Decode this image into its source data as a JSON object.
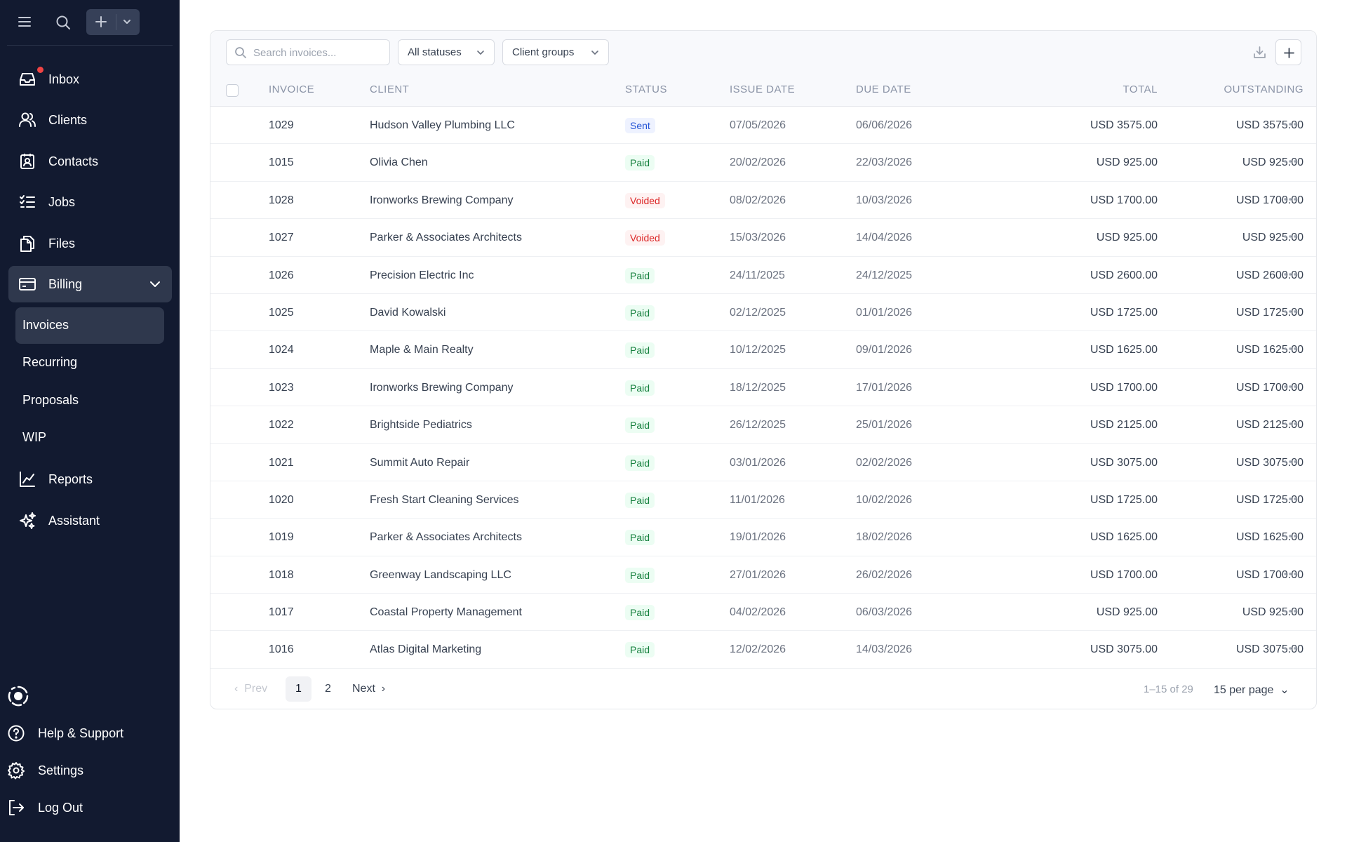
{
  "sidebar": {
    "nav": [
      {
        "label": "Inbox",
        "icon": "inbox-icon"
      },
      {
        "label": "Clients",
        "icon": "clients-icon"
      },
      {
        "label": "Contacts",
        "icon": "contacts-icon"
      },
      {
        "label": "Jobs",
        "icon": "jobs-icon"
      },
      {
        "label": "Files",
        "icon": "files-icon"
      },
      {
        "label": "Billing",
        "icon": "billing-icon"
      }
    ],
    "billing_sub": [
      "Invoices",
      "Recurring",
      "Proposals",
      "WIP"
    ],
    "nav2": [
      {
        "label": "Reports",
        "icon": "reports-icon"
      },
      {
        "label": "Assistant",
        "icon": "assistant-icon"
      }
    ],
    "bottom": [
      {
        "label": "Help & Support",
        "icon": "help-icon"
      },
      {
        "label": "Settings",
        "icon": "settings-icon"
      },
      {
        "label": "Log Out",
        "icon": "logout-icon"
      }
    ]
  },
  "toolbar": {
    "search_placeholder": "Search invoices...",
    "status_filter": "All statuses",
    "group_filter": "Client groups"
  },
  "table": {
    "headers": {
      "invoice": "INVOICE",
      "client": "CLIENT",
      "status": "STATUS",
      "issue": "ISSUE DATE",
      "due": "DUE DATE",
      "total": "TOTAL",
      "outstanding": "OUTSTANDING"
    },
    "rows": [
      {
        "invoice": "1029",
        "client": "Hudson Valley Plumbing LLC",
        "status": "Sent",
        "issue": "07/05/2026",
        "due": "06/06/2026",
        "total": "USD 3575.00",
        "outstanding": "USD 3575.00"
      },
      {
        "invoice": "1015",
        "client": "Olivia Chen",
        "status": "Paid",
        "issue": "20/02/2026",
        "due": "22/03/2026",
        "total": "USD 925.00",
        "outstanding": "USD 925.00"
      },
      {
        "invoice": "1028",
        "client": "Ironworks Brewing Company",
        "status": "Voided",
        "issue": "08/02/2026",
        "due": "10/03/2026",
        "total": "USD 1700.00",
        "outstanding": "USD 1700.00"
      },
      {
        "invoice": "1027",
        "client": "Parker & Associates Architects",
        "status": "Voided",
        "issue": "15/03/2026",
        "due": "14/04/2026",
        "total": "USD 925.00",
        "outstanding": "USD 925.00"
      },
      {
        "invoice": "1026",
        "client": "Precision Electric Inc",
        "status": "Paid",
        "issue": "24/11/2025",
        "due": "24/12/2025",
        "total": "USD 2600.00",
        "outstanding": "USD 2600.00"
      },
      {
        "invoice": "1025",
        "client": "David Kowalski",
        "status": "Paid",
        "issue": "02/12/2025",
        "due": "01/01/2026",
        "total": "USD 1725.00",
        "outstanding": "USD 1725.00"
      },
      {
        "invoice": "1024",
        "client": "Maple & Main Realty",
        "status": "Paid",
        "issue": "10/12/2025",
        "due": "09/01/2026",
        "total": "USD 1625.00",
        "outstanding": "USD 1625.00"
      },
      {
        "invoice": "1023",
        "client": "Ironworks Brewing Company",
        "status": "Paid",
        "issue": "18/12/2025",
        "due": "17/01/2026",
        "total": "USD 1700.00",
        "outstanding": "USD 1700.00"
      },
      {
        "invoice": "1022",
        "client": "Brightside Pediatrics",
        "status": "Paid",
        "issue": "26/12/2025",
        "due": "25/01/2026",
        "total": "USD 2125.00",
        "outstanding": "USD 2125.00"
      },
      {
        "invoice": "1021",
        "client": "Summit Auto Repair",
        "status": "Paid",
        "issue": "03/01/2026",
        "due": "02/02/2026",
        "total": "USD 3075.00",
        "outstanding": "USD 3075.00"
      },
      {
        "invoice": "1020",
        "client": "Fresh Start Cleaning Services",
        "status": "Paid",
        "issue": "11/01/2026",
        "due": "10/02/2026",
        "total": "USD 1725.00",
        "outstanding": "USD 1725.00"
      },
      {
        "invoice": "1019",
        "client": "Parker & Associates Architects",
        "status": "Paid",
        "issue": "19/01/2026",
        "due": "18/02/2026",
        "total": "USD 1625.00",
        "outstanding": "USD 1625.00"
      },
      {
        "invoice": "1018",
        "client": "Greenway Landscaping LLC",
        "status": "Paid",
        "issue": "27/01/2026",
        "due": "26/02/2026",
        "total": "USD 1700.00",
        "outstanding": "USD 1700.00"
      },
      {
        "invoice": "1017",
        "client": "Coastal Property Management",
        "status": "Paid",
        "issue": "04/02/2026",
        "due": "06/03/2026",
        "total": "USD 925.00",
        "outstanding": "USD 925.00"
      },
      {
        "invoice": "1016",
        "client": "Atlas Digital Marketing",
        "status": "Paid",
        "issue": "12/02/2026",
        "due": "14/03/2026",
        "total": "USD 3075.00",
        "outstanding": "USD 3075.00"
      }
    ]
  },
  "pagination": {
    "prev": "Prev",
    "pages": [
      "1",
      "2"
    ],
    "current": "1",
    "next": "Next",
    "range": "1–15 of 29",
    "per_page": "15 per page"
  },
  "colors": {
    "sidebar_bg": "#121a30",
    "sent": "#2454d6",
    "paid": "#15803d",
    "voided": "#dc2626",
    "notification": "#f04444"
  }
}
